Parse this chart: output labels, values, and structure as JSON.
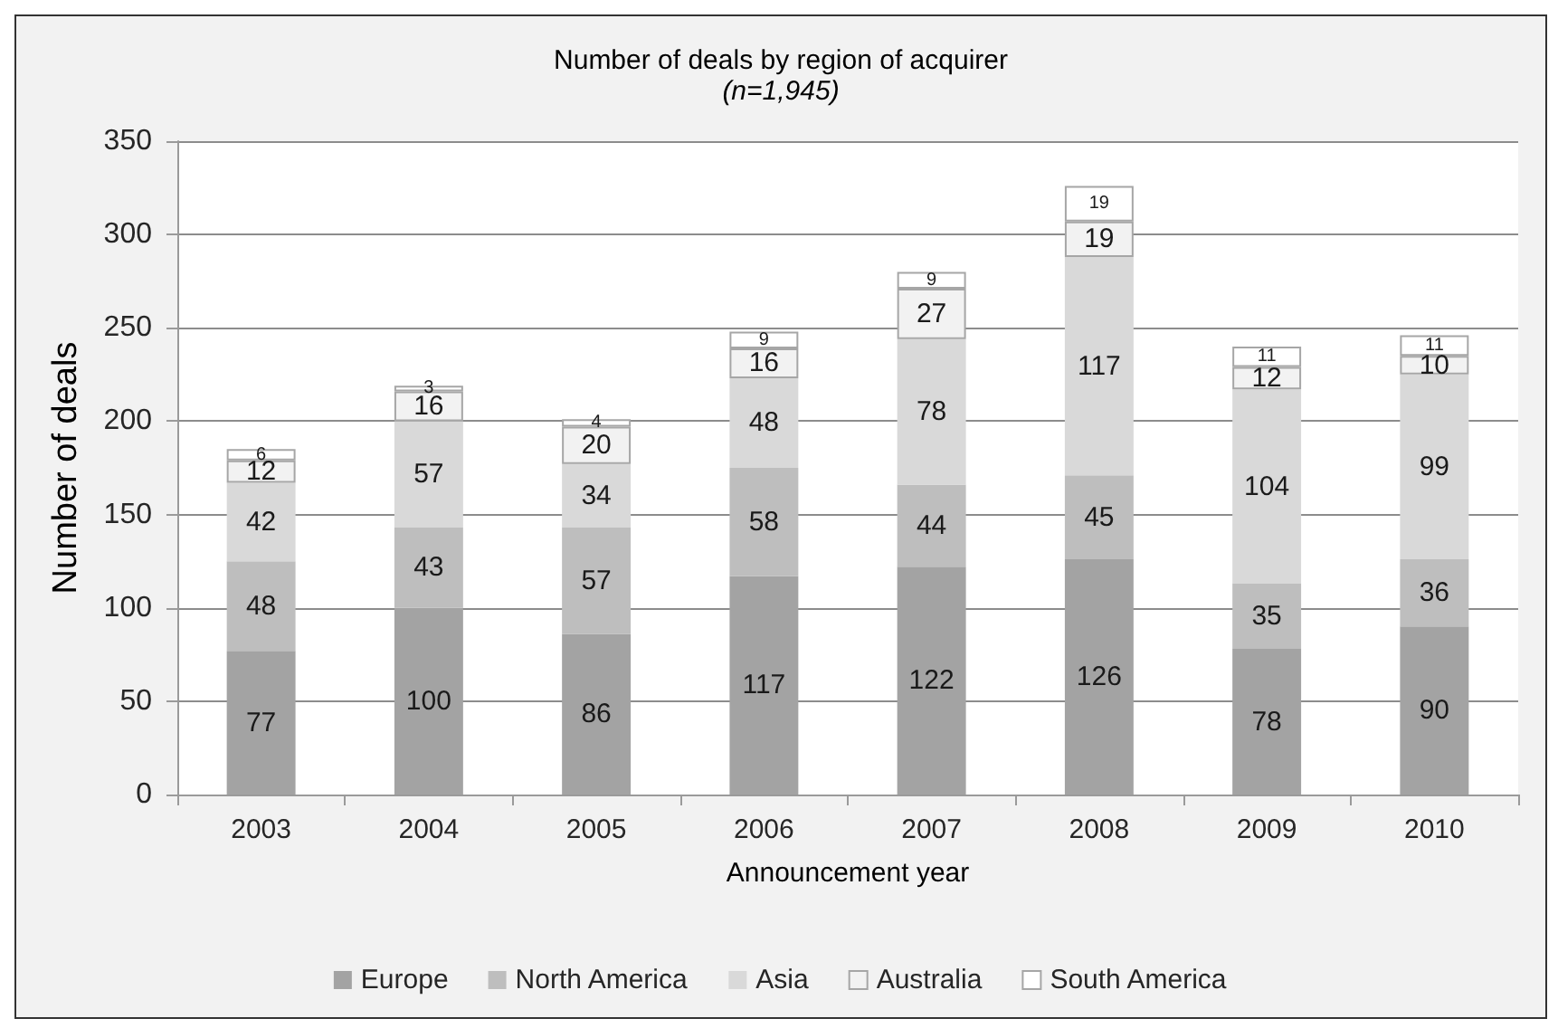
{
  "chart_data": {
    "type": "bar",
    "title": "Number of deals by region of acquirer",
    "subtitle": "(n=1,945)",
    "xlabel": "Announcement year",
    "ylabel": "Number of deals",
    "categories": [
      "2003",
      "2004",
      "2005",
      "2006",
      "2007",
      "2008",
      "2009",
      "2010"
    ],
    "series": [
      {
        "name": "Europe",
        "color": "#a3a3a3",
        "values": [
          77,
          100,
          86,
          117,
          122,
          126,
          78,
          90
        ]
      },
      {
        "name": "North America",
        "color": "#bebebe",
        "values": [
          48,
          43,
          57,
          58,
          44,
          45,
          35,
          36
        ]
      },
      {
        "name": "Asia",
        "color": "#d9d9d9",
        "values": [
          42,
          57,
          34,
          48,
          78,
          117,
          104,
          99
        ]
      },
      {
        "name": "Australia",
        "color": "#f2f2f2",
        "values": [
          12,
          16,
          20,
          16,
          27,
          19,
          12,
          10
        ]
      },
      {
        "name": "South America",
        "color": "#ffffff",
        "values": [
          6,
          3,
          4,
          9,
          9,
          19,
          11,
          11
        ]
      }
    ],
    "stacked": true,
    "ylim": [
      0,
      350
    ],
    "yticks": [
      0,
      50,
      100,
      150,
      200,
      250,
      300,
      350
    ],
    "grid": "y",
    "legend": "bottom",
    "data_labels": true
  }
}
